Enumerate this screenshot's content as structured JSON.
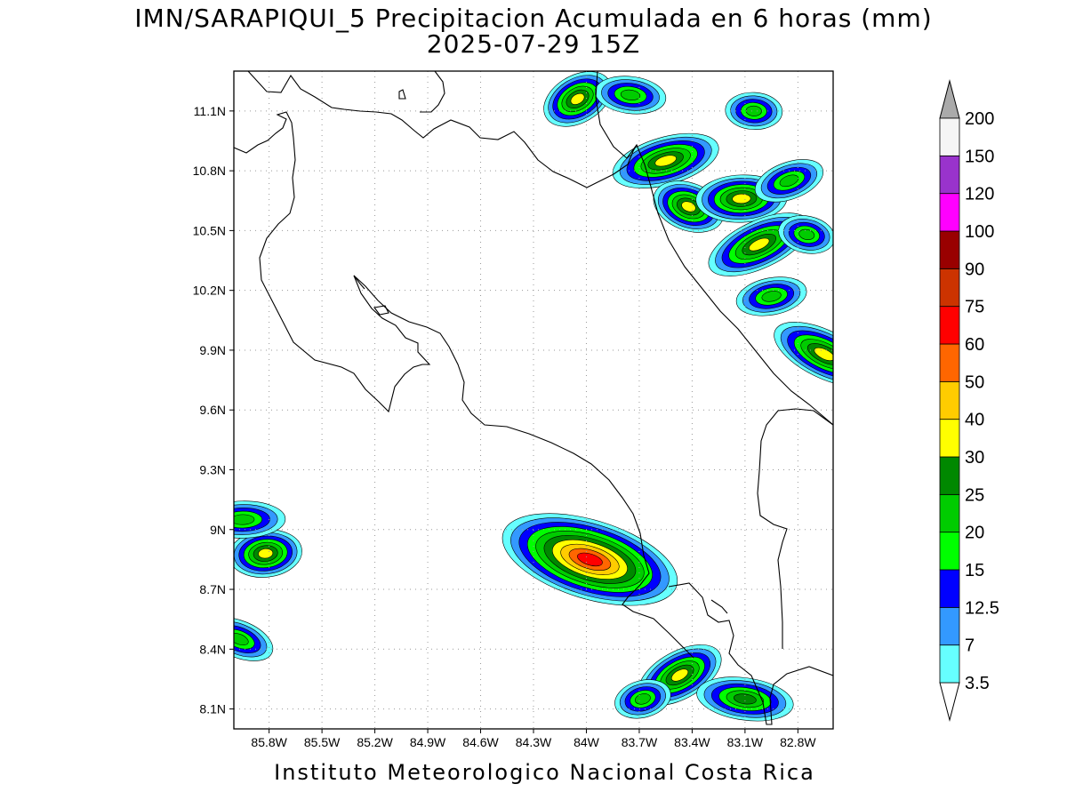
{
  "title_line1": "IMN/SARAPIQUI_5 Precipitacion Acumulada en 6 horas (mm)",
  "title_line2": "2025-07-29 15Z",
  "footer": "Instituto Meteorologico Nacional Costa Rica",
  "map": {
    "lon_range": [
      -86.0,
      -82.6
    ],
    "lat_range": [
      8.0,
      11.3
    ],
    "lat_ticks": [
      {
        "value": 11.1,
        "label": "11.1N"
      },
      {
        "value": 10.8,
        "label": "10.8N"
      },
      {
        "value": 10.5,
        "label": "10.5N"
      },
      {
        "value": 10.2,
        "label": "10.2N"
      },
      {
        "value": 9.9,
        "label": "9.9N"
      },
      {
        "value": 9.6,
        "label": "9.6N"
      },
      {
        "value": 9.3,
        "label": "9.3N"
      },
      {
        "value": 9.0,
        "label": "9N"
      },
      {
        "value": 8.7,
        "label": "8.7N"
      },
      {
        "value": 8.4,
        "label": "8.4N"
      },
      {
        "value": 8.1,
        "label": "8.1N"
      }
    ],
    "lon_ticks": [
      {
        "value": -85.8,
        "label": "85.8W"
      },
      {
        "value": -85.5,
        "label": "85.5W"
      },
      {
        "value": -85.2,
        "label": "85.2W"
      },
      {
        "value": -84.9,
        "label": "84.9W"
      },
      {
        "value": -84.6,
        "label": "84.6W"
      },
      {
        "value": -84.3,
        "label": "84.3W"
      },
      {
        "value": -84.0,
        "label": "84W"
      },
      {
        "value": -83.7,
        "label": "83.7W"
      },
      {
        "value": -83.4,
        "label": "83.4W"
      },
      {
        "value": -83.1,
        "label": "83.1W"
      },
      {
        "value": -82.8,
        "label": "82.8W"
      }
    ],
    "grid": true
  },
  "colorbar": {
    "colors": [
      "#66ffff",
      "#3399ff",
      "#0000ff",
      "#00ff00",
      "#00cc00",
      "#008800",
      "#ffff00",
      "#ffcc00",
      "#ff6600",
      "#ff0000",
      "#cc3300",
      "#990000",
      "#ff00ff",
      "#9933cc",
      "#f5f5f5",
      "#aaaaaa"
    ],
    "labels": [
      "3.5",
      "7",
      "12.5",
      "15",
      "20",
      "25",
      "30",
      "40",
      "50",
      "60",
      "75",
      "90",
      "100",
      "120",
      "150",
      "200"
    ]
  },
  "precip_cells": [
    {
      "lon": -84.05,
      "lat": 11.16,
      "max_mm": 30
    },
    {
      "lon": -83.75,
      "lat": 11.18,
      "max_mm": 20
    },
    {
      "lon": -83.55,
      "lat": 10.85,
      "max_mm": 30
    },
    {
      "lon": -83.42,
      "lat": 10.62,
      "max_mm": 30
    },
    {
      "lon": -83.12,
      "lat": 10.66,
      "max_mm": 30
    },
    {
      "lon": -83.02,
      "lat": 10.43,
      "max_mm": 30
    },
    {
      "lon": -82.75,
      "lat": 10.48,
      "max_mm": 20
    },
    {
      "lon": -82.95,
      "lat": 10.17,
      "max_mm": 20
    },
    {
      "lon": -82.65,
      "lat": 9.88,
      "max_mm": 30
    },
    {
      "lon": -83.05,
      "lat": 11.1,
      "max_mm": 20
    },
    {
      "lon": -82.85,
      "lat": 10.75,
      "max_mm": 20
    },
    {
      "lon": -83.98,
      "lat": 8.85,
      "max_mm": 60
    },
    {
      "lon": -85.82,
      "lat": 8.88,
      "max_mm": 30
    },
    {
      "lon": -83.47,
      "lat": 8.27,
      "max_mm": 30
    },
    {
      "lon": -83.1,
      "lat": 8.15,
      "max_mm": 25
    },
    {
      "lon": -83.68,
      "lat": 8.15,
      "max_mm": 20
    },
    {
      "lon": -85.97,
      "lat": 8.45,
      "max_mm": 20
    },
    {
      "lon": -85.95,
      "lat": 9.05,
      "max_mm": 20
    }
  ]
}
